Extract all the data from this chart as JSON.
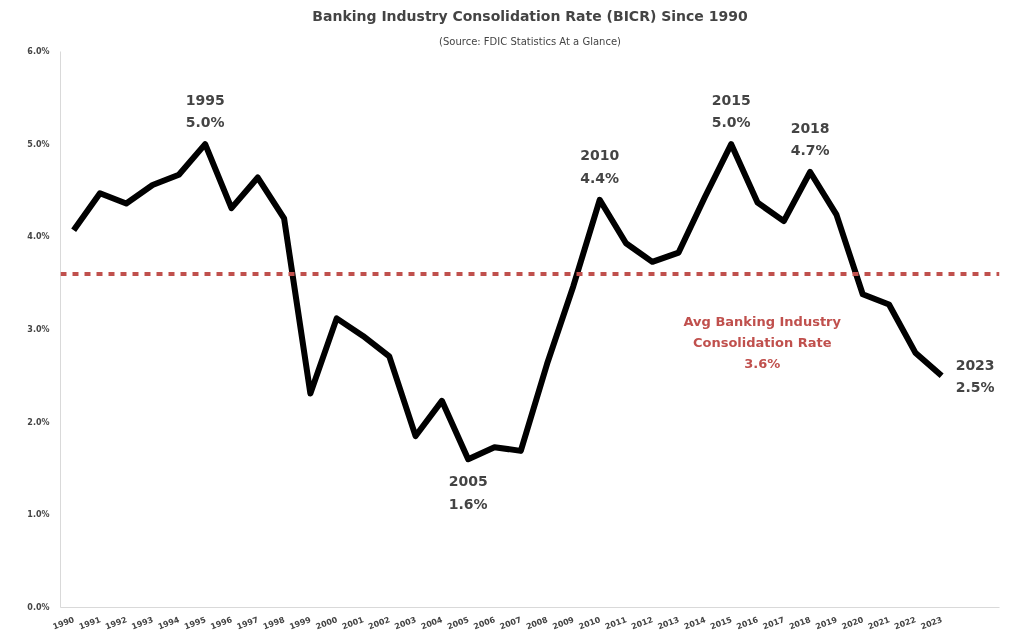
{
  "chart_data": {
    "type": "line",
    "title": "Banking Industry Consolidation Rate (BICR) Since 1990",
    "subtitle": "(Source: FDIC Statistics At a Glance)",
    "categories": [
      "1990",
      "1991",
      "1992",
      "1993",
      "1994",
      "1995",
      "1996",
      "1997",
      "1998",
      "1999",
      "2000",
      "2001",
      "2002",
      "2003",
      "2004",
      "2005",
      "2006",
      "2007",
      "2008",
      "2009",
      "2010",
      "2011",
      "2012",
      "2013",
      "2014",
      "2015",
      "2016",
      "2017",
      "2018",
      "2019",
      "2020",
      "2021",
      "2022",
      "2023"
    ],
    "series": [
      {
        "color": "#000000",
        "values": [
          4.07,
          4.47,
          4.36,
          4.56,
          4.67,
          5.0,
          4.31,
          4.64,
          4.2,
          2.31,
          3.12,
          2.93,
          2.71,
          1.85,
          2.23,
          1.6,
          1.73,
          1.69,
          2.63,
          3.47,
          4.4,
          3.93,
          3.73,
          3.83,
          4.43,
          5.0,
          4.37,
          4.17,
          4.7,
          4.24,
          3.38,
          3.27,
          2.75,
          2.5
        ]
      }
    ],
    "ylim": [
      0,
      6
    ],
    "yticks": [
      {
        "value": 0,
        "label": "0.0%"
      },
      {
        "value": 1,
        "label": "1.0%"
      },
      {
        "value": 2,
        "label": "2.0%"
      },
      {
        "value": 3,
        "label": "3.0%"
      },
      {
        "value": 4,
        "label": "4.0%"
      },
      {
        "value": 5,
        "label": "5.0%"
      },
      {
        "value": 6,
        "label": "6.0%"
      }
    ],
    "grid": false,
    "marker": "none",
    "line_style": "solid",
    "ref_lines": [
      {
        "axis": "y",
        "value": 3.6,
        "label": "Avg Banking Industry\nConsolidation Rate\n3.6%",
        "color": "#c0504d",
        "line_style": "dashed"
      }
    ],
    "annotations": [
      {
        "text": "1995\n5.0%",
        "x": "1995",
        "y": 5.0
      },
      {
        "text": "2005\n1.6%",
        "x": "2005",
        "y": 1.6
      },
      {
        "text": "2010\n4.4%",
        "x": "2010",
        "y": 4.4
      },
      {
        "text": "2015\n5.0%",
        "x": "2015",
        "y": 5.0
      },
      {
        "text": "2018\n4.7%",
        "x": "2018",
        "y": 4.7
      },
      {
        "text": "2023\n2.5%",
        "x": "2023",
        "y": 2.5
      }
    ]
  }
}
